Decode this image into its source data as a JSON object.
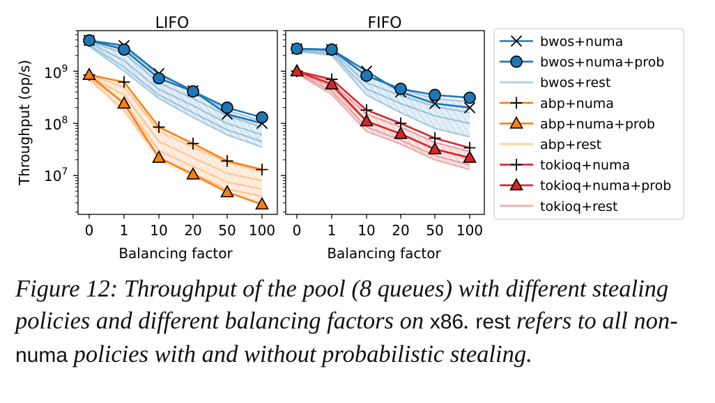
{
  "figure": {
    "ylabel": "Throughput (op/s)",
    "xlabel": "Balancing factor"
  },
  "caption": {
    "part1": "Figure 12: Throughput of the pool (8 queues) with different stealing policies and different balancing factors on ",
    "code1": "x86",
    "part2": ". ",
    "code2": "rest",
    "part3": " refers to all non-",
    "code3": "numa",
    "part4": " policies with and without probabilistic stealing."
  },
  "colors": {
    "bwos": "#1f77b4",
    "abp": "#ff7f0e",
    "tokioq": "#d62728"
  },
  "chart_data": [
    {
      "type": "line",
      "title": "LIFO",
      "xlabel": "Balancing factor",
      "ylabel": "Throughput (op/s)",
      "yscale": "log",
      "ylim": [
        1800000.0,
        6000000000.0
      ],
      "yticks": [
        {
          "value": 1000000000.0,
          "base": "10",
          "exp": "9"
        },
        {
          "value": 100000000.0,
          "base": "10",
          "exp": "8"
        },
        {
          "value": 10000000.0,
          "base": "10",
          "exp": "7"
        }
      ],
      "categories": [
        "0",
        "1",
        "10",
        "20",
        "50",
        "100"
      ],
      "series": [
        {
          "name": "bwos+numa",
          "color": "#1f77b4",
          "marker": "x",
          "values": [
            3900000000.0,
            3100000000.0,
            900000000.0,
            420000000.0,
            150000000.0,
            100000000.0
          ]
        },
        {
          "name": "bwos+numa+prob",
          "color": "#1f77b4",
          "marker": "o",
          "values": [
            3900000000.0,
            2600000000.0,
            730000000.0,
            410000000.0,
            200000000.0,
            130000000.0
          ]
        },
        {
          "name": "abp+numa",
          "color": "#ff7f0e",
          "marker": "+",
          "values": [
            850000000.0,
            620000000.0,
            85000000.0,
            41000000.0,
            19000000.0,
            13000000.0
          ]
        },
        {
          "name": "abp+numa+prob",
          "color": "#ff7f0e",
          "marker": "^",
          "values": [
            850000000.0,
            240000000.0,
            22000000.0,
            10500000.0,
            4800000.0,
            2800000.0
          ]
        }
      ],
      "rest": [
        {
          "name": "bwos+rest",
          "color": "#1f77b4",
          "upper": [
            3900000000.0,
            2900000000.0,
            850000000.0,
            400000000.0,
            180000000.0,
            110000000.0
          ],
          "lower": [
            3000000000.0,
            1000000000.0,
            300000000.0,
            130000000.0,
            60000000.0,
            35000000.0
          ],
          "lines": [
            [
              3900000000.0,
              2900000000.0,
              850000000.0,
              400000000.0,
              180000000.0,
              110000000.0
            ],
            [
              3700000000.0,
              2200000000.0,
              600000000.0,
              300000000.0,
              140000000.0,
              85000000.0
            ],
            [
              3500000000.0,
              1600000000.0,
              450000000.0,
              220000000.0,
              100000000.0,
              60000000.0
            ],
            [
              3200000000.0,
              1200000000.0,
              350000000.0,
              160000000.0,
              75000000.0,
              45000000.0
            ],
            [
              3000000000.0,
              1000000000.0,
              300000000.0,
              130000000.0,
              60000000.0,
              35000000.0
            ]
          ]
        },
        {
          "name": "abp+rest",
          "color": "#ff7f0e",
          "upper": [
            850000000.0,
            550000000.0,
            80000000.0,
            40000000.0,
            20000000.0,
            14000000.0
          ],
          "lower": [
            650000000.0,
            150000000.0,
            18000000.0,
            9000000.0,
            4500000.0,
            3000000.0
          ],
          "lines": [
            [
              850000000.0,
              500000000.0,
              70000000.0,
              35000000.0,
              18000000.0,
              12000000.0
            ],
            [
              800000000.0,
              350000000.0,
              45000000.0,
              22000000.0,
              11000000.0,
              8000000.0
            ],
            [
              750000000.0,
              250000000.0,
              30000000.0,
              15000000.0,
              7500000.0,
              5500000.0
            ],
            [
              700000000.0,
              180000000.0,
              22000000.0,
              11000000.0,
              5500000.0,
              4000000.0
            ]
          ]
        }
      ]
    },
    {
      "type": "line",
      "title": "FIFO",
      "xlabel": "Balancing factor",
      "yscale": "log",
      "ylim": [
        1800000.0,
        6000000000.0
      ],
      "categories": [
        "0",
        "1",
        "10",
        "20",
        "50",
        "100"
      ],
      "series": [
        {
          "name": "bwos+numa",
          "color": "#1f77b4",
          "marker": "x",
          "values": [
            2700000000.0,
            2600000000.0,
            1000000000.0,
            400000000.0,
            240000000.0,
            200000000.0
          ]
        },
        {
          "name": "bwos+numa+prob",
          "color": "#1f77b4",
          "marker": "o",
          "values": [
            2700000000.0,
            2600000000.0,
            820000000.0,
            460000000.0,
            350000000.0,
            310000000.0
          ]
        },
        {
          "name": "tokioq+numa",
          "color": "#d62728",
          "marker": "+",
          "values": [
            1000000000.0,
            700000000.0,
            180000000.0,
            100000000.0,
            52000000.0,
            34000000.0
          ]
        },
        {
          "name": "tokioq+numa+prob",
          "color": "#d62728",
          "marker": "^",
          "values": [
            1000000000.0,
            560000000.0,
            110000000.0,
            63000000.0,
            32000000.0,
            22000000.0
          ]
        }
      ],
      "rest": [
        {
          "name": "bwos+rest",
          "color": "#1f77b4",
          "upper": [
            2700000000.0,
            2500000000.0,
            800000000.0,
            450000000.0,
            300000000.0,
            260000000.0
          ],
          "lower": [
            2400000000.0,
            2000000000.0,
            350000000.0,
            160000000.0,
            80000000.0,
            55000000.0
          ],
          "lines": [
            [
              2700000000.0,
              2500000000.0,
              800000000.0,
              450000000.0,
              300000000.0,
              260000000.0
            ],
            [
              2600000000.0,
              2400000000.0,
              600000000.0,
              340000000.0,
              210000000.0,
              160000000.0
            ],
            [
              2500000000.0,
              2200000000.0,
              460000000.0,
              240000000.0,
              140000000.0,
              100000000.0
            ],
            [
              2400000000.0,
              2000000000.0,
              350000000.0,
              160000000.0,
              80000000.0,
              55000000.0
            ]
          ]
        },
        {
          "name": "tokioq+rest",
          "color": "#d62728",
          "upper": [
            1000000000.0,
            650000000.0,
            160000000.0,
            90000000.0,
            45000000.0,
            30000000.0
          ],
          "lower": [
            900000000.0,
            360000000.0,
            70000000.0,
            40000000.0,
            20000000.0,
            13000000.0
          ],
          "lines": [
            [
              1000000000.0,
              600000000.0,
              150000000.0,
              85000000.0,
              43000000.0,
              29000000.0
            ],
            [
              960000000.0,
              500000000.0,
              110000000.0,
              63000000.0,
              32000000.0,
              21000000.0
            ],
            [
              920000000.0,
              420000000.0,
              85000000.0,
              48000000.0,
              24000000.0,
              16000000.0
            ],
            [
              900000000.0,
              360000000.0,
              70000000.0,
              40000000.0,
              20000000.0,
              13000000.0
            ]
          ]
        }
      ]
    }
  ],
  "legend": {
    "placement": "right",
    "entries": [
      {
        "label": "bwos+numa",
        "color": "#1f77b4",
        "marker": "x",
        "style": "line"
      },
      {
        "label": "bwos+numa+prob",
        "color": "#1f77b4",
        "marker": "o",
        "style": "line"
      },
      {
        "label": "bwos+rest",
        "color": "#1f77b4",
        "marker": "none",
        "style": "light"
      },
      {
        "label": "abp+numa",
        "color": "#ff7f0e",
        "marker": "+",
        "style": "line"
      },
      {
        "label": "abp+numa+prob",
        "color": "#ff7f0e",
        "marker": "^",
        "style": "line"
      },
      {
        "label": "abp+rest",
        "color": "#ff7f0e",
        "marker": "none",
        "style": "light"
      },
      {
        "label": "tokioq+numa",
        "color": "#d62728",
        "marker": "+",
        "style": "line"
      },
      {
        "label": "tokioq+numa+prob",
        "color": "#d62728",
        "marker": "^",
        "style": "line"
      },
      {
        "label": "tokioq+rest",
        "color": "#d62728",
        "marker": "none",
        "style": "light"
      }
    ]
  }
}
